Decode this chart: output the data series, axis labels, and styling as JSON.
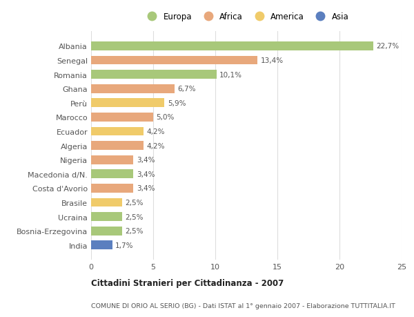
{
  "categories": [
    "Albania",
    "Senegal",
    "Romania",
    "Ghana",
    "Perù",
    "Marocco",
    "Ecuador",
    "Algeria",
    "Nigeria",
    "Macedonia d/N.",
    "Costa d'Avorio",
    "Brasile",
    "Ucraina",
    "Bosnia-Erzegovina",
    "India"
  ],
  "values": [
    22.7,
    13.4,
    10.1,
    6.7,
    5.9,
    5.0,
    4.2,
    4.2,
    3.4,
    3.4,
    3.4,
    2.5,
    2.5,
    2.5,
    1.7
  ],
  "labels": [
    "22,7%",
    "13,4%",
    "10,1%",
    "6,7%",
    "5,9%",
    "5,0%",
    "4,2%",
    "4,2%",
    "3,4%",
    "3,4%",
    "3,4%",
    "2,5%",
    "2,5%",
    "2,5%",
    "1,7%"
  ],
  "continent": [
    "Europa",
    "Africa",
    "Europa",
    "Africa",
    "America",
    "Africa",
    "America",
    "Africa",
    "Africa",
    "Europa",
    "Africa",
    "America",
    "Europa",
    "Europa",
    "Asia"
  ],
  "colors": {
    "Europa": "#a8c87a",
    "Africa": "#e8a87c",
    "America": "#f0cb6a",
    "Asia": "#5b7fbf"
  },
  "xlim": [
    0,
    25
  ],
  "xticks": [
    0,
    5,
    10,
    15,
    20,
    25
  ],
  "title": "Cittadini Stranieri per Cittadinanza - 2007",
  "subtitle": "COMUNE DI ORIO AL SERIO (BG) - Dati ISTAT al 1° gennaio 2007 - Elaborazione TUTTITALIA.IT",
  "background_color": "#ffffff",
  "grid_color": "#dddddd",
  "legend_order": [
    "Europa",
    "Africa",
    "America",
    "Asia"
  ]
}
